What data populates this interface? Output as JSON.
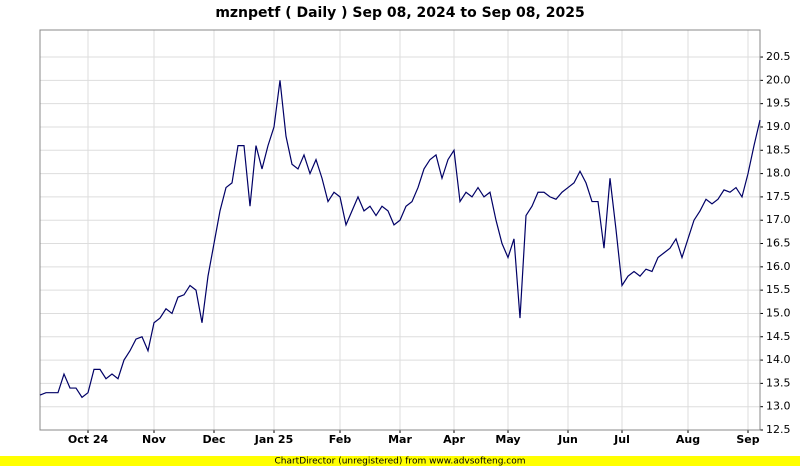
{
  "chart_data": {
    "type": "line",
    "title": "mznpetf ( Daily ) Sep 08, 2024 to Sep 08, 2025",
    "categories": [
      null,
      null,
      null,
      null,
      null,
      null,
      null,
      null,
      "Oct 24",
      null,
      null,
      null,
      null,
      null,
      null,
      null,
      null,
      null,
      null,
      "Nov",
      null,
      null,
      null,
      null,
      null,
      null,
      null,
      null,
      null,
      "Dec",
      null,
      null,
      null,
      null,
      null,
      null,
      null,
      null,
      null,
      "Jan 25",
      null,
      null,
      null,
      null,
      null,
      null,
      null,
      null,
      null,
      null,
      "Feb",
      null,
      null,
      null,
      null,
      null,
      null,
      null,
      null,
      null,
      "Mar",
      null,
      null,
      null,
      null,
      null,
      null,
      null,
      null,
      "Apr",
      null,
      null,
      null,
      null,
      null,
      null,
      null,
      null,
      "May",
      null,
      null,
      null,
      null,
      null,
      null,
      null,
      null,
      null,
      "Jun",
      null,
      null,
      null,
      null,
      null,
      null,
      null,
      null,
      "Jul",
      null,
      null,
      null,
      null,
      null,
      null,
      null,
      null,
      null,
      null,
      "Aug",
      null,
      null,
      null,
      null,
      null,
      null,
      null,
      null,
      null,
      "Sep",
      null,
      null
    ],
    "values": [
      13.25,
      13.3,
      13.3,
      13.3,
      13.7,
      13.4,
      13.4,
      13.2,
      13.3,
      13.8,
      13.8,
      13.6,
      13.7,
      13.6,
      14.0,
      14.2,
      14.45,
      14.5,
      14.2,
      14.8,
      14.9,
      15.1,
      15.0,
      15.35,
      15.4,
      15.6,
      15.5,
      14.8,
      15.8,
      16.5,
      17.2,
      17.7,
      17.8,
      18.6,
      18.6,
      17.3,
      18.6,
      18.1,
      18.6,
      19.0,
      20.0,
      18.8,
      18.2,
      18.1,
      18.4,
      18.0,
      18.3,
      17.9,
      17.4,
      17.6,
      17.5,
      16.9,
      17.2,
      17.5,
      17.2,
      17.3,
      17.1,
      17.3,
      17.2,
      16.9,
      17.0,
      17.3,
      17.4,
      17.7,
      18.1,
      18.3,
      18.4,
      17.9,
      18.3,
      18.5,
      17.4,
      17.6,
      17.5,
      17.7,
      17.5,
      17.6,
      17.0,
      16.5,
      16.2,
      16.6,
      14.9,
      17.1,
      17.3,
      17.6,
      17.6,
      17.5,
      17.45,
      17.6,
      17.7,
      17.8,
      18.05,
      17.8,
      17.4,
      17.4,
      16.4,
      17.9,
      16.8,
      15.6,
      15.8,
      15.9,
      15.8,
      15.95,
      15.9,
      16.2,
      16.3,
      16.4,
      16.6,
      16.2,
      16.6,
      17.0,
      17.2,
      17.45,
      17.35,
      17.45,
      17.65,
      17.6,
      17.7,
      17.5,
      18.0,
      18.6,
      19.15
    ],
    "color": "#000066",
    "ylim": [
      12.5,
      21.08
    ],
    "yticks": [
      12.5,
      {
        "value": 13,
        "label": "13.0"
      },
      13.5,
      {
        "value": 14,
        "label": "14.0"
      },
      14.5,
      {
        "value": 15,
        "label": "15.0"
      },
      15.5,
      {
        "value": 16,
        "label": "16.0"
      },
      16.5,
      {
        "value": 17,
        "label": "17.0"
      },
      17.5,
      {
        "value": 18,
        "label": "18.0"
      },
      18.5,
      {
        "value": 19,
        "label": "19.0"
      },
      19.5,
      {
        "value": 20,
        "label": "20.0"
      },
      20.5
    ],
    "grid": true
  },
  "footer": "ChartDirector (unregistered) from www.advsofteng.com"
}
